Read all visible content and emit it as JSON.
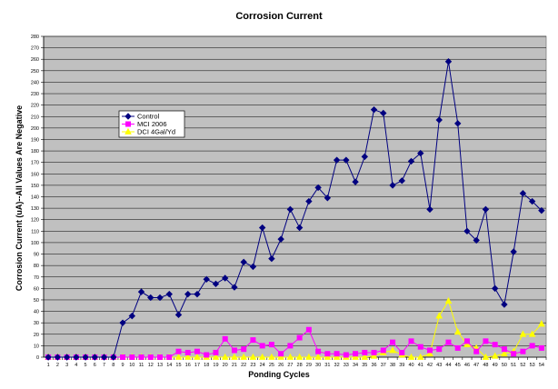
{
  "chart_data": {
    "type": "line",
    "title": "Corrosion Current",
    "xlabel": "Ponding Cycles",
    "ylabel": "Corrosion Current (uA)--All Values Are Negative",
    "ylim": [
      0,
      280
    ],
    "ytick_step": 10,
    "grid": "horizontal",
    "legend_position": "upper-left inside plot",
    "plot_background": "#c0c0c0",
    "x": [
      1,
      2,
      3,
      4,
      5,
      6,
      7,
      8,
      9,
      10,
      11,
      12,
      13,
      14,
      15,
      16,
      17,
      18,
      19,
      20,
      21,
      22,
      23,
      24,
      25,
      26,
      27,
      28,
      29,
      30,
      31,
      32,
      33,
      34,
      35,
      36,
      37,
      38,
      39,
      40,
      41,
      42,
      43,
      44,
      45,
      46,
      47,
      48,
      49,
      50,
      51,
      52,
      53,
      54
    ],
    "series": [
      {
        "name": "Control",
        "color": "#000080",
        "marker": "diamond",
        "values": [
          0,
          0,
          0,
          0,
          0,
          0,
          0,
          0,
          30,
          36,
          57,
          52,
          52,
          55,
          37,
          55,
          55,
          68,
          64,
          69,
          61,
          83,
          79,
          113,
          86,
          103,
          129,
          113,
          136,
          148,
          139,
          172,
          172,
          153,
          175,
          216,
          213,
          150,
          154,
          171,
          178,
          129,
          207,
          258,
          204,
          110,
          102,
          129,
          60,
          46,
          92,
          143,
          136,
          128
        ]
      },
      {
        "name": "MCI 2006",
        "color": "#ff00ff",
        "marker": "square",
        "values": [
          0,
          0,
          0,
          0,
          0,
          0,
          0,
          0,
          0,
          0,
          0,
          0,
          0,
          0,
          5,
          4,
          5,
          2,
          4,
          16,
          6,
          7,
          15,
          10,
          11,
          3,
          10,
          17,
          24,
          5,
          3,
          3,
          2,
          3,
          4,
          4,
          6,
          13,
          4,
          14,
          9,
          6,
          7,
          13,
          8,
          14,
          5,
          14,
          11,
          7,
          3,
          5,
          10,
          8
        ]
      },
      {
        "name": "DCI 4Gal/Yd",
        "color": "#ffff00",
        "marker": "triangle",
        "values": [
          0,
          0,
          0,
          0,
          0,
          0,
          0,
          0,
          0,
          0,
          0,
          0,
          0,
          0,
          0,
          0,
          0,
          0,
          0,
          0,
          0,
          0,
          0,
          0,
          0,
          0,
          0,
          0,
          0,
          0,
          0,
          0,
          0,
          0,
          0,
          1,
          4,
          6,
          2,
          0,
          0,
          3,
          36,
          49,
          22,
          11,
          8,
          0,
          1,
          3,
          5,
          20,
          20,
          29
        ]
      }
    ]
  }
}
